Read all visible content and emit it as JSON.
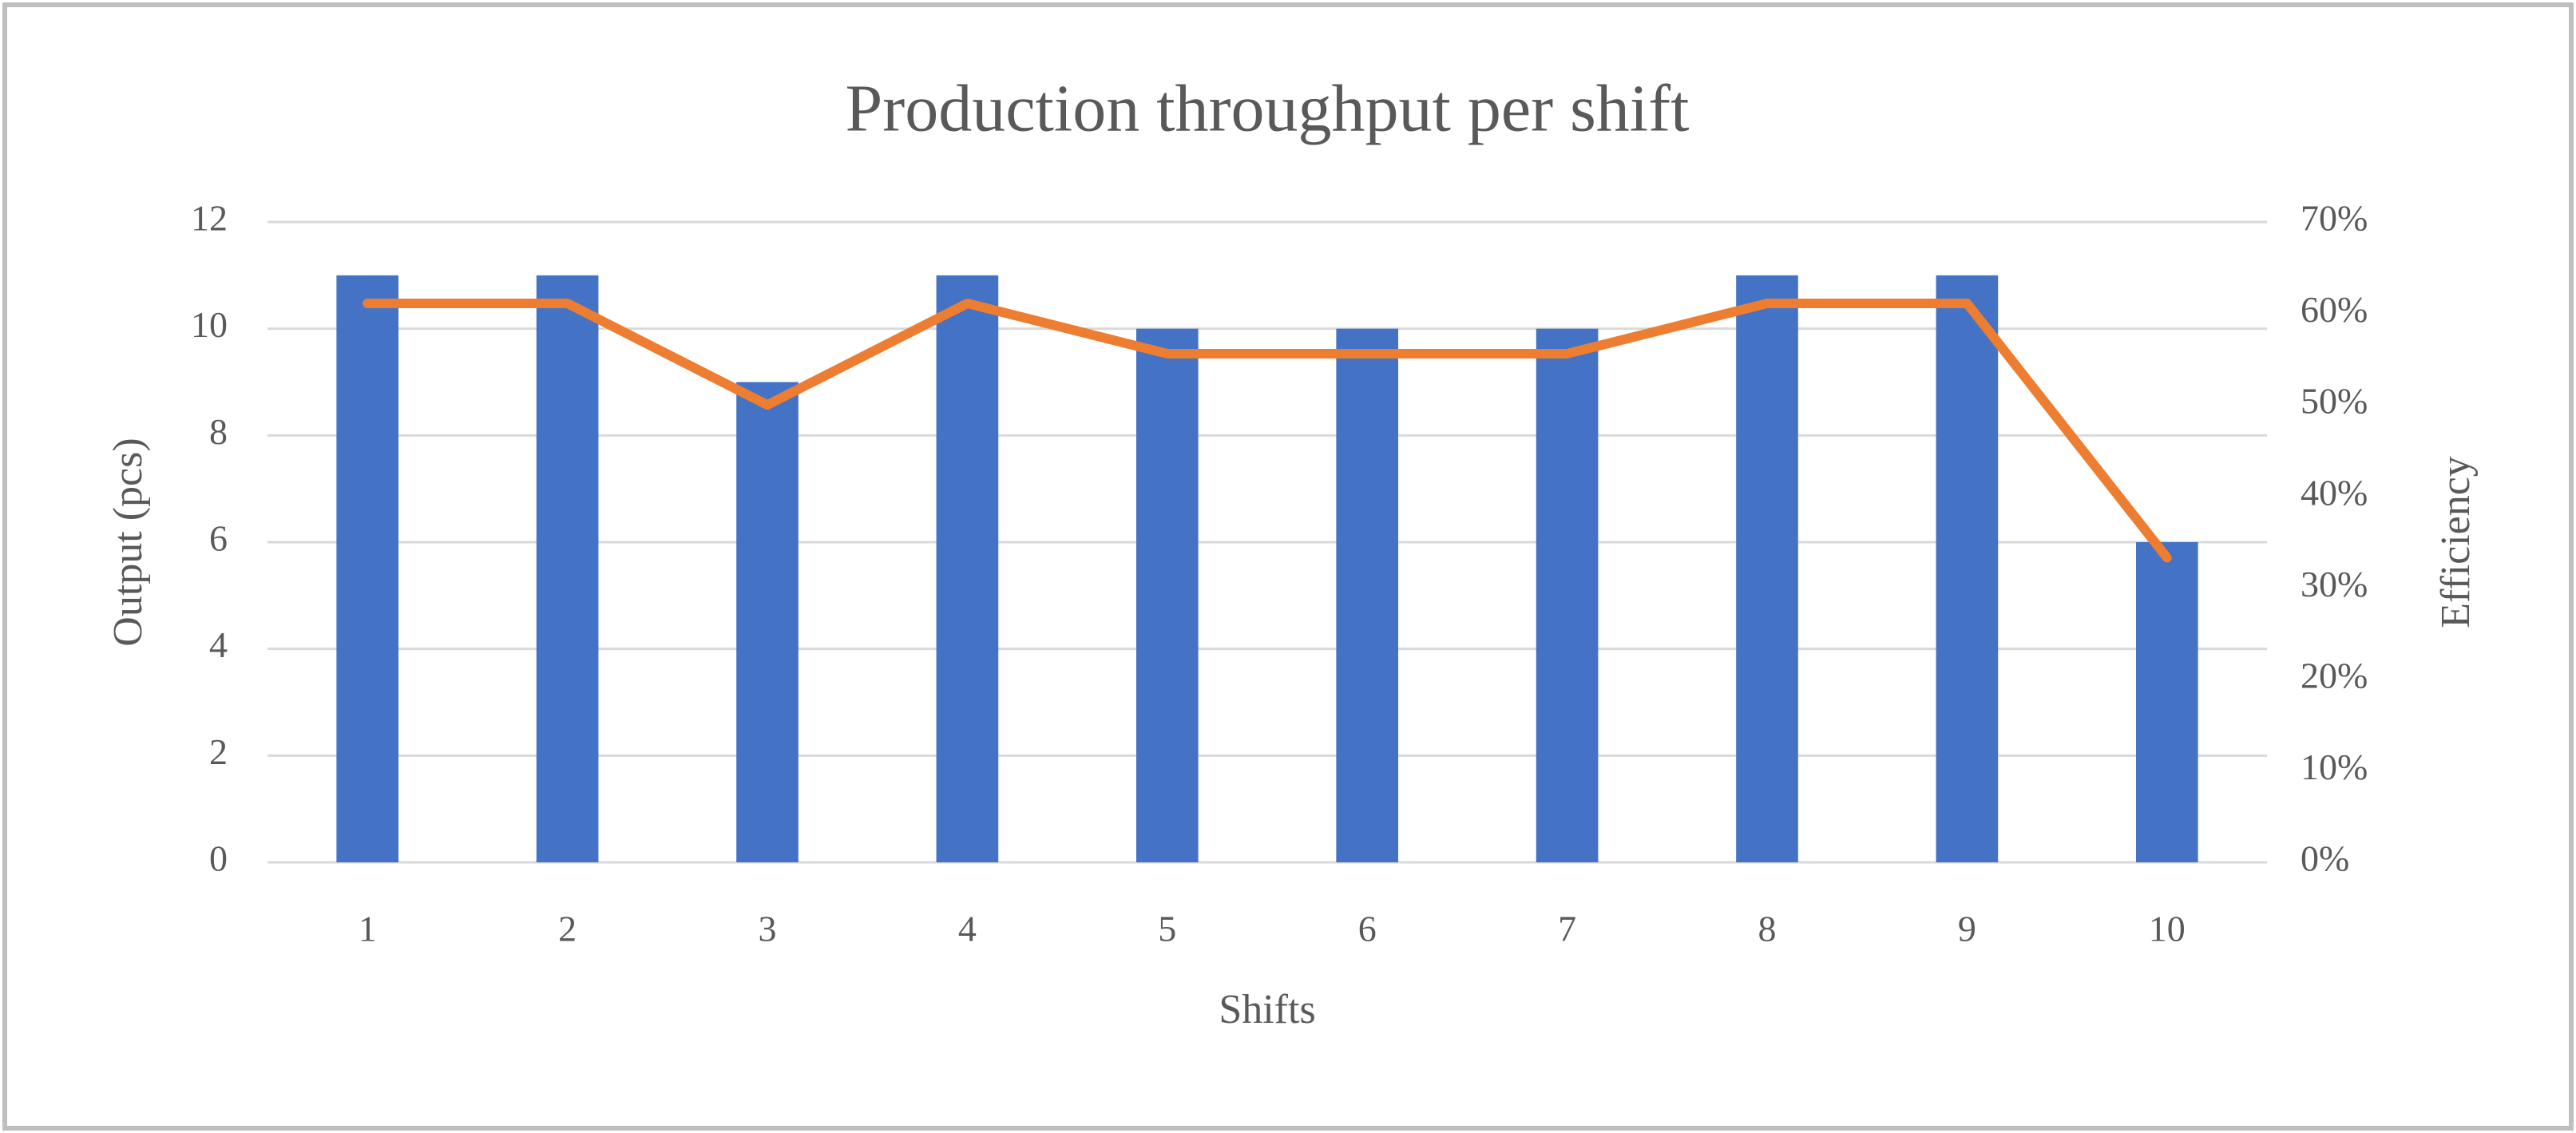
{
  "chart_data": {
    "type": "bar-line",
    "title": "Production throughput per shift",
    "x_label": "Shifts",
    "y_label": "Output (pcs)",
    "y2_label": "Efficiency",
    "categories": [
      "1",
      "2",
      "3",
      "4",
      "5",
      "6",
      "7",
      "8",
      "9",
      "10"
    ],
    "series": [
      {
        "name": "Output",
        "type": "bar",
        "color": "#4472c4",
        "values": [
          11,
          11,
          9,
          11,
          10,
          10,
          10,
          11,
          11,
          6
        ]
      },
      {
        "name": "Efficiency",
        "type": "line",
        "axis": "y2",
        "color": "#ed7d31",
        "values": [
          61.1,
          61.1,
          50,
          61.1,
          55.6,
          55.6,
          55.6,
          61.1,
          61.1,
          33.3
        ]
      }
    ],
    "ylim": [
      0,
      12
    ],
    "yticks": [
      0,
      2,
      4,
      6,
      8,
      10,
      12
    ],
    "y2lim": [
      0,
      70
    ],
    "y2ticks": [
      {
        "value": 0,
        "label": "0%"
      },
      {
        "value": 10,
        "label": "10%"
      },
      {
        "value": 20,
        "label": "20%"
      },
      {
        "value": 30,
        "label": "30%"
      },
      {
        "value": 40,
        "label": "40%"
      },
      {
        "value": 50,
        "label": "50%"
      },
      {
        "value": 60,
        "label": "60%"
      },
      {
        "value": 70,
        "label": "70%"
      }
    ],
    "grid": true
  }
}
